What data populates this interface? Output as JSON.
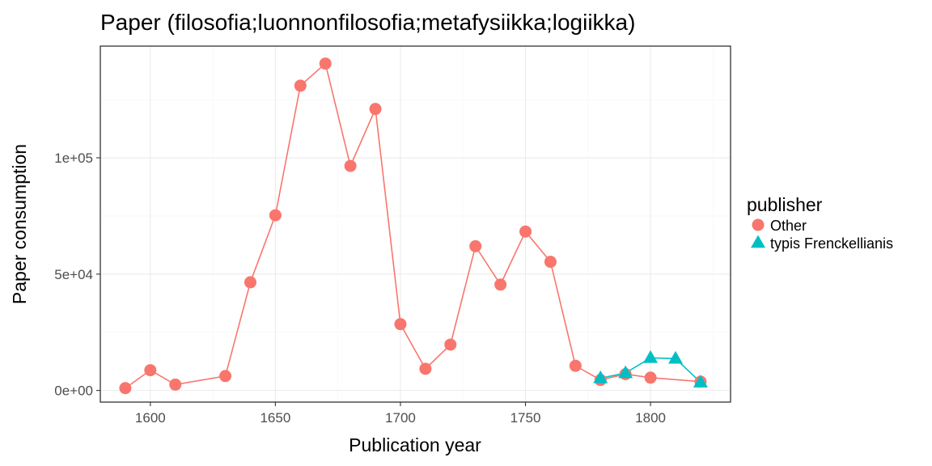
{
  "chart_data": {
    "type": "line",
    "title": "Paper (filosofia;luonnonfilosofia;metafysiikka;logiikka)",
    "xlabel": "Publication year",
    "ylabel": "Paper consumption",
    "xlim": [
      1580,
      1832
    ],
    "ylim": [
      -5000,
      148000
    ],
    "x_ticks": [
      1600,
      1650,
      1700,
      1750,
      1800
    ],
    "x_tick_labels": [
      "1600",
      "1650",
      "1700",
      "1750",
      "1800"
    ],
    "y_ticks": [
      0,
      50000,
      100000
    ],
    "y_tick_labels": [
      "0e+00",
      "5e+04",
      "1e+05"
    ],
    "grid": true,
    "legend": {
      "title": "publisher",
      "position": "right"
    },
    "series": [
      {
        "name": "Other",
        "color": "#F8766D",
        "marker": "circle",
        "x": [
          1590,
          1600,
          1610,
          1630,
          1640,
          1650,
          1660,
          1670,
          1680,
          1690,
          1700,
          1710,
          1720,
          1730,
          1740,
          1750,
          1760,
          1770,
          1780,
          1790,
          1800,
          1820
        ],
        "y": [
          1000,
          8700,
          2500,
          6200,
          46500,
          75300,
          131000,
          140500,
          96500,
          121000,
          28500,
          9300,
          19700,
          62000,
          45500,
          68300,
          55300,
          10600,
          4500,
          7000,
          5500,
          3800
        ]
      },
      {
        "name": "typis Frenckellianis",
        "color": "#00BFC4",
        "marker": "triangle",
        "x": [
          1780,
          1790,
          1800,
          1810,
          1820
        ],
        "y": [
          5300,
          7500,
          14000,
          13700,
          3500
        ]
      }
    ]
  }
}
